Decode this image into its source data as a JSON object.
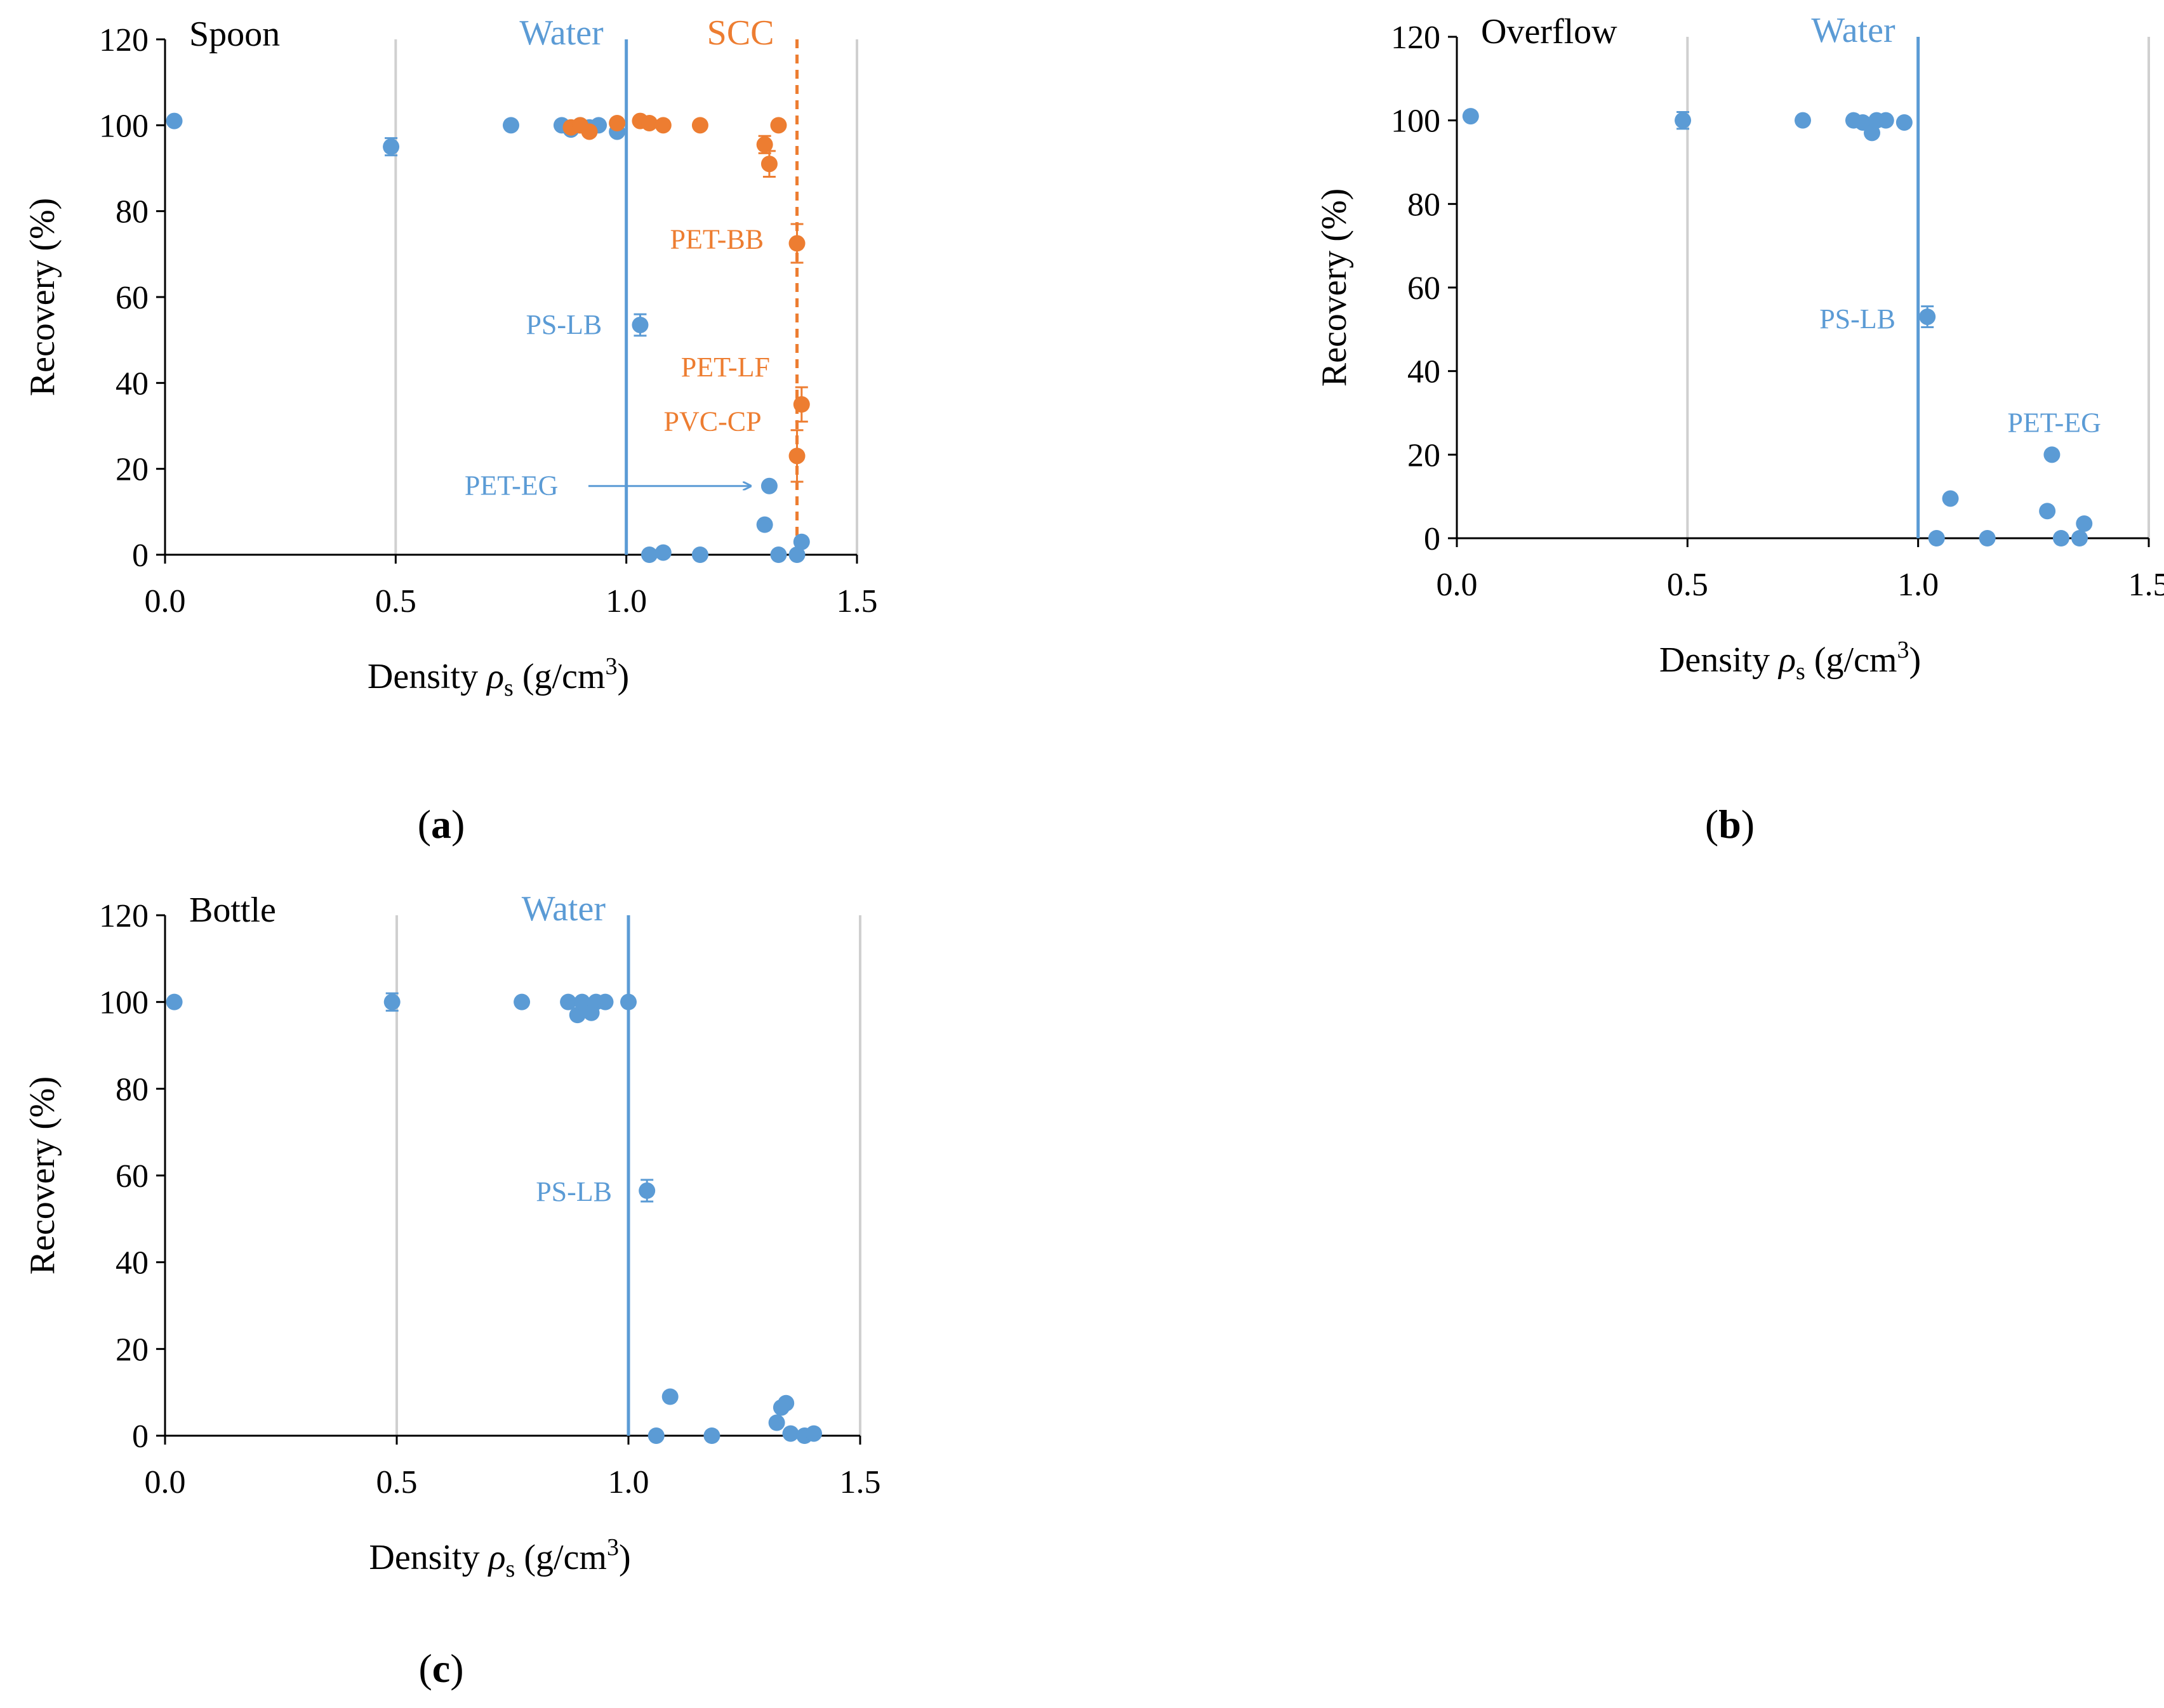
{
  "colors": {
    "blue": "#5b9bd5",
    "orange": "#ed7d31",
    "grid": "#d0d0d0",
    "axis": "#000000"
  },
  "charts": [
    {
      "id": "a",
      "type": "scatter",
      "panel_label": "Spoon",
      "caption": "a",
      "xlabel": "Density ρs (g/cm3)",
      "xlabel_main": "Density ",
      "xlabel_symbol": "ρ",
      "xlabel_sub": "s",
      "xlabel_unit": " (g/cm",
      "xlabel_sup": "3",
      "xlabel_end": ")",
      "ylabel": "Recovery (%)",
      "xlim": [
        0,
        1.5
      ],
      "ylim": [
        0,
        120
      ],
      "xticks": [
        "0.0",
        "0.5",
        "1.0",
        "1.5"
      ],
      "yticks": [
        "0",
        "20",
        "40",
        "60",
        "80",
        "100",
        "120"
      ],
      "reference_lines": [
        {
          "label": "Water",
          "x": 1.0,
          "color": "blue",
          "style": "solid"
        },
        {
          "label": "SCC",
          "x": 1.37,
          "color": "orange",
          "style": "dashed"
        }
      ],
      "series": [
        {
          "color": "blue",
          "points": [
            {
              "x": 0.02,
              "y": 101,
              "err": 0
            },
            {
              "x": 0.49,
              "y": 95,
              "err": 2
            },
            {
              "x": 0.75,
              "y": 100,
              "err": 0
            },
            {
              "x": 0.86,
              "y": 100,
              "err": 0
            },
            {
              "x": 0.88,
              "y": 99,
              "err": 0
            },
            {
              "x": 0.9,
              "y": 100,
              "err": 0
            },
            {
              "x": 0.92,
              "y": 99.5,
              "err": 0
            },
            {
              "x": 0.94,
              "y": 100,
              "err": 0
            },
            {
              "x": 0.98,
              "y": 98.5,
              "err": 0
            },
            {
              "x": 1.03,
              "y": 53.5,
              "err": 2.5,
              "label": "PS-LB"
            },
            {
              "x": 1.05,
              "y": 0,
              "err": 0
            },
            {
              "x": 1.08,
              "y": 0.5,
              "err": 0
            },
            {
              "x": 1.16,
              "y": 0,
              "err": 0
            },
            {
              "x": 1.3,
              "y": 7,
              "err": 0
            },
            {
              "x": 1.31,
              "y": 16,
              "err": 1,
              "label": "PET-EG"
            },
            {
              "x": 1.33,
              "y": 0,
              "err": 0
            },
            {
              "x": 1.37,
              "y": 0,
              "err": 0
            },
            {
              "x": 1.38,
              "y": 3,
              "err": 0
            }
          ]
        },
        {
          "color": "orange",
          "points": [
            {
              "x": 0.88,
              "y": 99.5,
              "err": 0
            },
            {
              "x": 0.9,
              "y": 100,
              "err": 0
            },
            {
              "x": 0.92,
              "y": 98.5,
              "err": 0
            },
            {
              "x": 0.98,
              "y": 100.5,
              "err": 0
            },
            {
              "x": 1.03,
              "y": 101,
              "err": 0
            },
            {
              "x": 1.05,
              "y": 100.5,
              "err": 0
            },
            {
              "x": 1.08,
              "y": 100,
              "err": 0
            },
            {
              "x": 1.16,
              "y": 100,
              "err": 0
            },
            {
              "x": 1.3,
              "y": 95.5,
              "err": 2
            },
            {
              "x": 1.31,
              "y": 91,
              "err": 3
            },
            {
              "x": 1.33,
              "y": 100,
              "err": 0
            },
            {
              "x": 1.37,
              "y": 72.5,
              "err": 4.5,
              "label": "PET-BB"
            },
            {
              "x": 1.38,
              "y": 35,
              "err": 4,
              "label": "PET-LF"
            },
            {
              "x": 1.37,
              "y": 23,
              "err": 6,
              "label": "PVC-CP"
            }
          ]
        }
      ]
    },
    {
      "id": "b",
      "type": "scatter",
      "panel_label": "Overflow",
      "caption": "b",
      "xlabel": "Density ρs (g/cm3)",
      "xlabel_main": "Density ",
      "xlabel_symbol": "ρ",
      "xlabel_sub": "s",
      "xlabel_unit": " (g/cm",
      "xlabel_sup": "3",
      "xlabel_end": ")",
      "ylabel": "Recovery (%)",
      "xlim": [
        0,
        1.5
      ],
      "ylim": [
        0,
        120
      ],
      "xticks": [
        "0.0",
        "0.5",
        "1.0",
        "1.5"
      ],
      "yticks": [
        "0",
        "20",
        "40",
        "60",
        "80",
        "100",
        "120"
      ],
      "reference_lines": [
        {
          "label": "Water",
          "x": 1.0,
          "color": "blue",
          "style": "solid"
        }
      ],
      "series": [
        {
          "color": "blue",
          "points": [
            {
              "x": 0.03,
              "y": 101,
              "err": 0
            },
            {
              "x": 0.49,
              "y": 100,
              "err": 2
            },
            {
              "x": 0.75,
              "y": 100,
              "err": 0
            },
            {
              "x": 0.86,
              "y": 100,
              "err": 0
            },
            {
              "x": 0.88,
              "y": 99.5,
              "err": 0
            },
            {
              "x": 0.9,
              "y": 97,
              "err": 0
            },
            {
              "x": 0.91,
              "y": 100,
              "err": 0
            },
            {
              "x": 0.93,
              "y": 100,
              "err": 0
            },
            {
              "x": 0.97,
              "y": 99.5,
              "err": 0
            },
            {
              "x": 1.02,
              "y": 53,
              "err": 2.5,
              "label": "PS-LB"
            },
            {
              "x": 1.04,
              "y": 0,
              "err": 0
            },
            {
              "x": 1.07,
              "y": 9.5,
              "err": 0
            },
            {
              "x": 1.15,
              "y": 0,
              "err": 0
            },
            {
              "x": 1.28,
              "y": 6.5,
              "err": 0
            },
            {
              "x": 1.29,
              "y": 20,
              "err": 1,
              "label": "PET-EG"
            },
            {
              "x": 1.31,
              "y": 0,
              "err": 0
            },
            {
              "x": 1.35,
              "y": 0,
              "err": 0
            },
            {
              "x": 1.36,
              "y": 3.5,
              "err": 0
            }
          ]
        }
      ]
    },
    {
      "id": "c",
      "type": "scatter",
      "panel_label": "Bottle",
      "caption": "c",
      "xlabel": "Density ρs (g/cm3)",
      "xlabel_main": "Density ",
      "xlabel_symbol": "ρ",
      "xlabel_sub": "s",
      "xlabel_unit": " (g/cm",
      "xlabel_sup": "3",
      "xlabel_end": ")",
      "ylabel": "Recovery (%)",
      "xlim": [
        0,
        1.5
      ],
      "ylim": [
        0,
        120
      ],
      "xticks": [
        "0.0",
        "0.5",
        "1.0",
        "1.5"
      ],
      "yticks": [
        "0",
        "20",
        "40",
        "60",
        "80",
        "100",
        "120"
      ],
      "reference_lines": [
        {
          "label": "Water",
          "x": 1.0,
          "color": "blue",
          "style": "solid"
        }
      ],
      "series": [
        {
          "color": "blue",
          "points": [
            {
              "x": 0.02,
              "y": 100,
              "err": 0
            },
            {
              "x": 0.49,
              "y": 100,
              "err": 2
            },
            {
              "x": 0.77,
              "y": 100,
              "err": 0
            },
            {
              "x": 0.87,
              "y": 100,
              "err": 0
            },
            {
              "x": 0.89,
              "y": 97,
              "err": 0
            },
            {
              "x": 0.9,
              "y": 100,
              "err": 0
            },
            {
              "x": 0.92,
              "y": 97.5,
              "err": 0
            },
            {
              "x": 0.93,
              "y": 100,
              "err": 0
            },
            {
              "x": 0.95,
              "y": 100,
              "err": 0
            },
            {
              "x": 1.0,
              "y": 100,
              "err": 0
            },
            {
              "x": 1.04,
              "y": 56.5,
              "err": 2.5,
              "label": "PS-LB"
            },
            {
              "x": 1.06,
              "y": 0,
              "err": 0
            },
            {
              "x": 1.09,
              "y": 9,
              "err": 0
            },
            {
              "x": 1.18,
              "y": 0,
              "err": 0
            },
            {
              "x": 1.32,
              "y": 3,
              "err": 0
            },
            {
              "x": 1.33,
              "y": 6.5,
              "err": 0
            },
            {
              "x": 1.34,
              "y": 7.5,
              "err": 0
            },
            {
              "x": 1.35,
              "y": 0.5,
              "err": 0
            },
            {
              "x": 1.38,
              "y": 0,
              "err": 0
            },
            {
              "x": 1.4,
              "y": 0.5,
              "err": 0
            }
          ]
        }
      ]
    }
  ]
}
